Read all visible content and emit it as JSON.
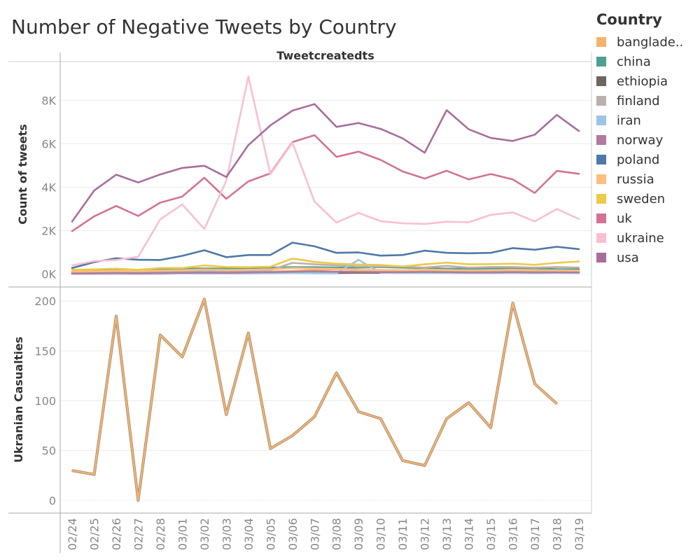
{
  "chart_data": [
    {
      "type": "line",
      "title": "Number of Negative Tweets by Country",
      "header": "Tweetcreatedts",
      "ylabel": "Count of tweets",
      "legend_title": "Country",
      "legend_position": "right",
      "grid": true,
      "ylim": [
        -400,
        9400
      ],
      "yticks": [
        0,
        2000,
        4000,
        6000,
        8000
      ],
      "ytick_labels": [
        "0K",
        "2K",
        "4K",
        "6K",
        "8K"
      ],
      "categories": [
        "02/24",
        "02/25",
        "02/26",
        "02/27",
        "02/28",
        "03/01",
        "03/02",
        "03/03",
        "03/04",
        "03/05",
        "03/06",
        "03/07",
        "03/08",
        "03/09",
        "03/10",
        "03/11",
        "03/12",
        "03/13",
        "03/14",
        "03/15",
        "03/16",
        "03/17",
        "03/18",
        "03/19"
      ],
      "series": [
        {
          "name": "banglade..",
          "color": "#F6B26B",
          "values": [
            60,
            70,
            80,
            70,
            80,
            90,
            100,
            90,
            120,
            120,
            140,
            200,
            220,
            180,
            130,
            120,
            140,
            130,
            140,
            150,
            160,
            140,
            130,
            100
          ]
        },
        {
          "name": "china",
          "color": "#4E9F94",
          "values": [
            120,
            180,
            220,
            180,
            200,
            250,
            260,
            250,
            280,
            300,
            320,
            320,
            300,
            300,
            330,
            300,
            280,
            250,
            250,
            260,
            280,
            260,
            230,
            220
          ]
        },
        {
          "name": "ethiopia",
          "color": "#6E6460",
          "values": [
            20,
            20,
            20,
            20,
            20,
            30,
            60,
            40,
            40,
            50,
            60,
            60,
            50,
            60,
            60,
            60,
            70,
            60,
            50,
            50,
            60,
            50,
            60,
            50
          ]
        },
        {
          "name": "finland",
          "color": "#BAB0AC",
          "values": [
            60,
            80,
            100,
            80,
            100,
            120,
            150,
            130,
            150,
            180,
            520,
            450,
            400,
            350,
            350,
            350,
            300,
            380,
            300,
            330,
            330,
            300,
            330,
            300
          ]
        },
        {
          "name": "iran",
          "color": "#9CC5E5",
          "values": [
            30,
            30,
            30,
            30,
            30,
            30,
            30,
            30,
            40,
            40,
            50,
            40,
            40,
            660,
            60,
            50,
            50,
            50,
            50,
            50,
            50,
            50,
            50,
            50
          ]
        },
        {
          "name": "norway",
          "color": "#B07AA1",
          "values": [
            30,
            40,
            50,
            40,
            50,
            60,
            70,
            60,
            80,
            90,
            110,
            130,
            110,
            100,
            90,
            90,
            100,
            90,
            80,
            80,
            90,
            80,
            80,
            80
          ]
        },
        {
          "name": "poland",
          "color": "#4E79A7",
          "values": [
            280,
            550,
            730,
            660,
            650,
            840,
            1100,
            780,
            880,
            880,
            1450,
            1280,
            980,
            1000,
            850,
            880,
            1080,
            980,
            960,
            980,
            1200,
            1120,
            1260,
            1150
          ]
        },
        {
          "name": "russia",
          "color": "#FFBE7D",
          "values": [
            120,
            130,
            150,
            140,
            160,
            180,
            210,
            190,
            200,
            220,
            280,
            260,
            240,
            200,
            190,
            180,
            210,
            190,
            170,
            180,
            200,
            180,
            170,
            160
          ]
        },
        {
          "name": "sweden",
          "color": "#EDC948",
          "values": [
            200,
            220,
            250,
            200,
            280,
            280,
            400,
            330,
            320,
            340,
            720,
            560,
            480,
            440,
            420,
            350,
            450,
            530,
            450,
            460,
            480,
            430,
            520,
            580
          ]
        },
        {
          "name": "uk",
          "color": "#D37295",
          "values": [
            1980,
            2660,
            3140,
            2680,
            3290,
            3570,
            4440,
            3470,
            4270,
            4640,
            6080,
            6400,
            5400,
            5640,
            5260,
            4730,
            4400,
            4760,
            4360,
            4610,
            4360,
            3740,
            4750,
            4620
          ]
        },
        {
          "name": "ukraine",
          "color": "#FABFD2",
          "values": [
            400,
            600,
            650,
            800,
            2520,
            3210,
            2080,
            4300,
            9100,
            4600,
            6050,
            3340,
            2370,
            2820,
            2440,
            2340,
            2310,
            2410,
            2390,
            2730,
            2840,
            2430,
            3000,
            2540
          ]
        },
        {
          "name": "usa",
          "color": "#A86E9B",
          "values": [
            2420,
            3850,
            4580,
            4220,
            4590,
            4890,
            4990,
            4470,
            5940,
            6850,
            7530,
            7830,
            6780,
            6960,
            6690,
            6250,
            5590,
            7550,
            6670,
            6270,
            6130,
            6420,
            7330,
            6590
          ]
        }
      ]
    },
    {
      "type": "line",
      "ylabel": "Ukranian Casualties",
      "grid": true,
      "ylim": [
        -10,
        210
      ],
      "yticks": [
        0,
        50,
        100,
        150,
        200
      ],
      "ytick_labels": [
        "0",
        "50",
        "100",
        "150",
        "200"
      ],
      "categories": [
        "02/24",
        "02/25",
        "02/26",
        "02/27",
        "02/28",
        "03/01",
        "03/02",
        "03/03",
        "03/04",
        "03/05",
        "03/06",
        "03/07",
        "03/08",
        "03/09",
        "03/10",
        "03/11",
        "03/12",
        "03/13",
        "03/14",
        "03/15",
        "03/16",
        "03/17",
        "03/18",
        "03/19"
      ],
      "series": [
        {
          "color": "#F6B26B",
          "values": [
            30,
            26,
            185,
            0,
            166,
            144,
            202,
            86,
            168,
            52,
            65,
            84,
            128,
            89,
            82,
            40,
            35,
            82,
            98,
            73,
            198,
            117,
            97,
            null
          ]
        }
      ]
    }
  ]
}
